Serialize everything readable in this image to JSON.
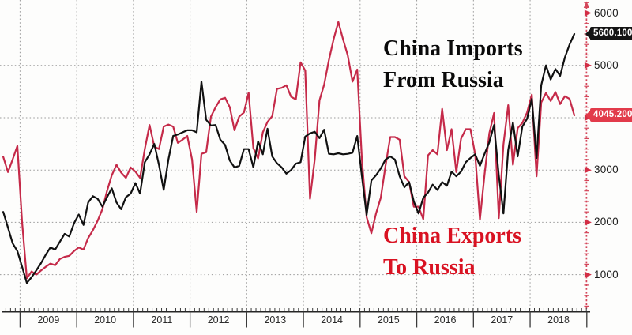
{
  "chart_data": {
    "type": "line",
    "title": "",
    "x_start": "2008-09",
    "x_freq": "monthly",
    "x_end": "2018-10",
    "x_tick_labels": [
      "2009",
      "2010",
      "2011",
      "2012",
      "2013",
      "2014",
      "2015",
      "2016",
      "2017",
      "2018"
    ],
    "y_axis": {
      "side": "right",
      "ticks_visible": [
        "6000",
        "5000",
        "3000",
        "2000",
        "1000"
      ],
      "tick_values": [
        6000,
        5000,
        4000,
        3000,
        2000,
        1000
      ],
      "ylim": [
        250,
        6250
      ],
      "grid": "dotted",
      "axis_color": "#d4465a",
      "grid_color": "#9a9a9a"
    },
    "annotations": [
      {
        "line1": "China Imports",
        "line2": "From Russia",
        "color": "#0a0a0a"
      },
      {
        "line1": "China Exports",
        "line2": "To Russia",
        "color": "#d91222"
      }
    ],
    "series": [
      {
        "name": "China Imports From Russia",
        "color": "#111111",
        "last_label": "5600.100",
        "values": [
          2200,
          1900,
          1600,
          1450,
          1150,
          840,
          950,
          1080,
          1220,
          1380,
          1520,
          1480,
          1630,
          1780,
          1730,
          1980,
          2150,
          1950,
          2380,
          2500,
          2450,
          2300,
          2480,
          2650,
          2380,
          2250,
          2480,
          2550,
          2750,
          2550,
          3150,
          3300,
          3500,
          3100,
          2620,
          3200,
          3650,
          3680,
          3720,
          3760,
          3760,
          3720,
          4690,
          3960,
          3850,
          3860,
          3580,
          3480,
          3180,
          3050,
          3080,
          3400,
          3400,
          3050,
          3550,
          3300,
          3790,
          3260,
          3130,
          3050,
          2930,
          3000,
          3120,
          3150,
          3640,
          3700,
          3730,
          3610,
          3770,
          3310,
          3300,
          3320,
          3300,
          3310,
          3330,
          3650,
          2880,
          2140,
          2800,
          2900,
          3030,
          3200,
          3260,
          3200,
          2880,
          2670,
          2770,
          2400,
          2170,
          2470,
          2570,
          2720,
          2620,
          2770,
          2700,
          2970,
          2880,
          2970,
          3150,
          3230,
          3300,
          3080,
          3310,
          3530,
          3860,
          2900,
          2170,
          3380,
          3910,
          3260,
          3830,
          3980,
          4360,
          3230,
          4620,
          5000,
          4730,
          4930,
          4800,
          5150,
          5400,
          5600.1
        ]
      },
      {
        "name": "China Exports To Russia",
        "color": "#c52a49",
        "last_label": "4045.200",
        "values": [
          3250,
          2960,
          3200,
          3460,
          2000,
          930,
          1060,
          1000,
          1080,
          1150,
          1210,
          1180,
          1300,
          1340,
          1360,
          1450,
          1520,
          1480,
          1700,
          1850,
          2030,
          2250,
          2600,
          2900,
          3100,
          2950,
          2850,
          3050,
          2970,
          2850,
          3400,
          3860,
          3450,
          3400,
          3830,
          3870,
          3830,
          3520,
          3580,
          3650,
          3200,
          2200,
          3310,
          3340,
          4020,
          4200,
          4350,
          4380,
          4200,
          3760,
          4020,
          4100,
          4480,
          3420,
          3220,
          3720,
          3920,
          4030,
          4550,
          4570,
          4620,
          4400,
          4350,
          5060,
          4900,
          2450,
          3200,
          4330,
          4630,
          5100,
          5500,
          5830,
          5500,
          5190,
          4690,
          4920,
          3200,
          2100,
          1790,
          2170,
          2470,
          3080,
          3630,
          3630,
          3580,
          2880,
          2770,
          2300,
          2300,
          2060,
          3280,
          3380,
          3300,
          4170,
          3380,
          3780,
          2960,
          3600,
          3780,
          3780,
          3300,
          2050,
          2920,
          3700,
          4090,
          2080,
          3490,
          4240,
          3100,
          3800,
          3900,
          4100,
          4440,
          2880,
          4290,
          4470,
          4320,
          4490,
          4260,
          4410,
          4360,
          4045.2
        ]
      }
    ]
  }
}
